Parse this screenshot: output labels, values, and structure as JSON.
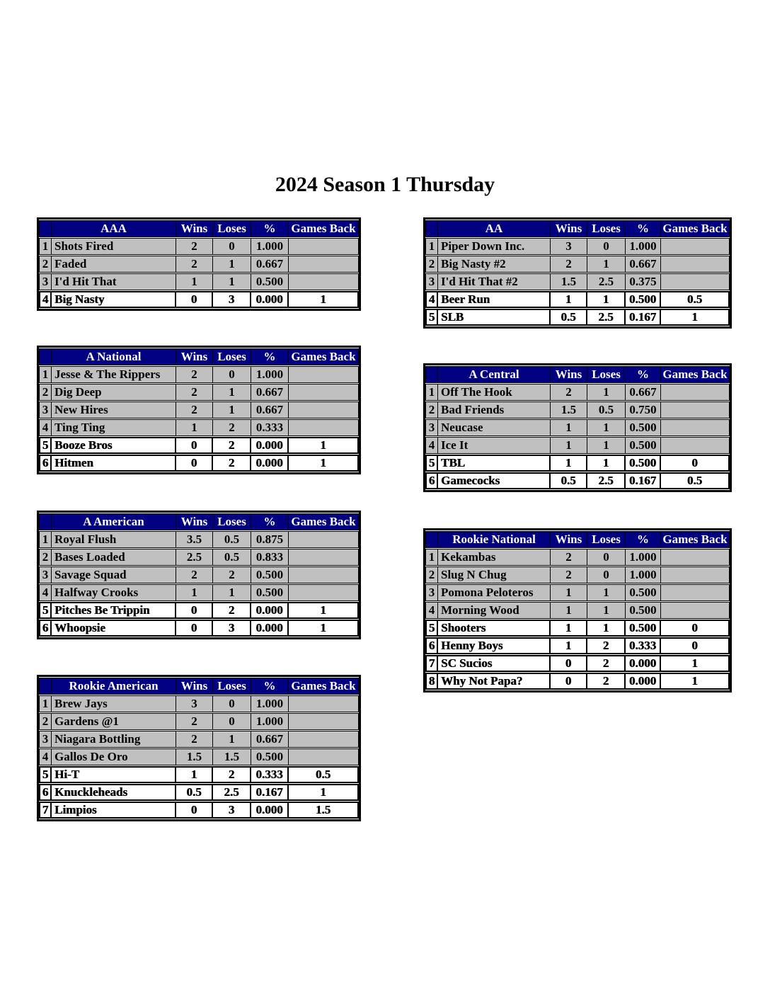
{
  "title": "2024 Season 1 Thursday",
  "column_headers": {
    "wins": "Wins",
    "loses": "Loses",
    "pct": "%",
    "games_back": "Games Back"
  },
  "colors": {
    "header_bg": "#000080",
    "header_text": "#FFFFFF",
    "above_line_row_bg": "#C0C0C0",
    "below_line_row_bg": "#FFFFFF",
    "grid": "#000000"
  },
  "tables": [
    {
      "division": "AAA",
      "column": "left",
      "rows": [
        {
          "rank": "1",
          "team": "Shots Fired",
          "wins": "2",
          "loses": "0",
          "pct": "1.000",
          "games_back": "",
          "below_line": false
        },
        {
          "rank": "2",
          "team": "Faded",
          "wins": "2",
          "loses": "1",
          "pct": "0.667",
          "games_back": "",
          "below_line": false
        },
        {
          "rank": "3",
          "team": "I'd Hit That",
          "wins": "1",
          "loses": "1",
          "pct": "0.500",
          "games_back": "",
          "below_line": false
        },
        {
          "rank": "4",
          "team": "Big Nasty",
          "wins": "0",
          "loses": "3",
          "pct": "0.000",
          "games_back": "1",
          "below_line": true
        }
      ]
    },
    {
      "division": "A National",
      "column": "left",
      "rows": [
        {
          "rank": "1",
          "team": "Jesse & The Rippers",
          "wins": "2",
          "loses": "0",
          "pct": "1.000",
          "games_back": "",
          "below_line": false
        },
        {
          "rank": "2",
          "team": "Dig Deep",
          "wins": "2",
          "loses": "1",
          "pct": "0.667",
          "games_back": "",
          "below_line": false
        },
        {
          "rank": "3",
          "team": "New Hires",
          "wins": "2",
          "loses": "1",
          "pct": "0.667",
          "games_back": "",
          "below_line": false
        },
        {
          "rank": "4",
          "team": "Ting Ting",
          "wins": "1",
          "loses": "2",
          "pct": "0.333",
          "games_back": "",
          "below_line": false
        },
        {
          "rank": "5",
          "team": "Booze Bros",
          "wins": "0",
          "loses": "2",
          "pct": "0.000",
          "games_back": "1",
          "below_line": true
        },
        {
          "rank": "6",
          "team": "Hitmen",
          "wins": "0",
          "loses": "2",
          "pct": "0.000",
          "games_back": "1",
          "below_line": true
        }
      ]
    },
    {
      "division": "A American",
      "column": "left",
      "rows": [
        {
          "rank": "1",
          "team": "Royal Flush",
          "wins": "3.5",
          "loses": "0.5",
          "pct": "0.875",
          "games_back": "",
          "below_line": false
        },
        {
          "rank": "2",
          "team": "Bases Loaded",
          "wins": "2.5",
          "loses": "0.5",
          "pct": "0.833",
          "games_back": "",
          "below_line": false
        },
        {
          "rank": "3",
          "team": "Savage Squad",
          "wins": "2",
          "loses": "2",
          "pct": "0.500",
          "games_back": "",
          "below_line": false
        },
        {
          "rank": "4",
          "team": "Halfway Crooks",
          "wins": "1",
          "loses": "1",
          "pct": "0.500",
          "games_back": "",
          "below_line": false
        },
        {
          "rank": "5",
          "team": "Pitches Be Trippin",
          "wins": "0",
          "loses": "2",
          "pct": "0.000",
          "games_back": "1",
          "below_line": true
        },
        {
          "rank": "6",
          "team": "Whoopsie",
          "wins": "0",
          "loses": "3",
          "pct": "0.000",
          "games_back": "1",
          "below_line": true
        }
      ]
    },
    {
      "division": "Rookie American",
      "column": "left",
      "rows": [
        {
          "rank": "1",
          "team": "Brew Jays",
          "wins": "3",
          "loses": "0",
          "pct": "1.000",
          "games_back": "",
          "below_line": false
        },
        {
          "rank": "2",
          "team": "Gardens @1",
          "wins": "2",
          "loses": "0",
          "pct": "1.000",
          "games_back": "",
          "below_line": false
        },
        {
          "rank": "3",
          "team": "Niagara Bottling",
          "wins": "2",
          "loses": "1",
          "pct": "0.667",
          "games_back": "",
          "below_line": false
        },
        {
          "rank": "4",
          "team": "Gallos De Oro",
          "wins": "1.5",
          "loses": "1.5",
          "pct": "0.500",
          "games_back": "",
          "below_line": false
        },
        {
          "rank": "5",
          "team": "Hi-T",
          "wins": "1",
          "loses": "2",
          "pct": "0.333",
          "games_back": "0.5",
          "below_line": true
        },
        {
          "rank": "6",
          "team": "Knuckleheads",
          "wins": "0.5",
          "loses": "2.5",
          "pct": "0.167",
          "games_back": "1",
          "below_line": true
        },
        {
          "rank": "7",
          "team": "Limpios",
          "wins": "0",
          "loses": "3",
          "pct": "0.000",
          "games_back": "1.5",
          "below_line": true
        }
      ]
    },
    {
      "division": "AA",
      "column": "right",
      "rows": [
        {
          "rank": "1",
          "team": "Piper Down Inc.",
          "wins": "3",
          "loses": "0",
          "pct": "1.000",
          "games_back": "",
          "below_line": false
        },
        {
          "rank": "2",
          "team": "Big Nasty #2",
          "wins": "2",
          "loses": "1",
          "pct": "0.667",
          "games_back": "",
          "below_line": false
        },
        {
          "rank": "3",
          "team": "I'd Hit That #2",
          "wins": "1.5",
          "loses": "2.5",
          "pct": "0.375",
          "games_back": "",
          "below_line": false
        },
        {
          "rank": "4",
          "team": "Beer Run",
          "wins": "1",
          "loses": "1",
          "pct": "0.500",
          "games_back": "0.5",
          "below_line": true
        },
        {
          "rank": "5",
          "team": "SLB",
          "wins": "0.5",
          "loses": "2.5",
          "pct": "0.167",
          "games_back": "1",
          "below_line": true
        }
      ]
    },
    {
      "division": "A Central",
      "column": "right",
      "rows": [
        {
          "rank": "1",
          "team": "Off The Hook",
          "wins": "2",
          "loses": "1",
          "pct": "0.667",
          "games_back": "",
          "below_line": false
        },
        {
          "rank": "2",
          "team": "Bad Friends",
          "wins": "1.5",
          "loses": "0.5",
          "pct": "0.750",
          "games_back": "",
          "below_line": false
        },
        {
          "rank": "3",
          "team": "Neucase",
          "wins": "1",
          "loses": "1",
          "pct": "0.500",
          "games_back": "",
          "below_line": false
        },
        {
          "rank": "4",
          "team": "Ice It",
          "wins": "1",
          "loses": "1",
          "pct": "0.500",
          "games_back": "",
          "below_line": false
        },
        {
          "rank": "5",
          "team": "TBL",
          "wins": "1",
          "loses": "1",
          "pct": "0.500",
          "games_back": "0",
          "below_line": true
        },
        {
          "rank": "6",
          "team": "Gamecocks",
          "wins": "0.5",
          "loses": "2.5",
          "pct": "0.167",
          "games_back": "0.5",
          "below_line": true
        }
      ]
    },
    {
      "division": "Rookie National",
      "column": "right",
      "rows": [
        {
          "rank": "1",
          "team": "Kekambas",
          "wins": "2",
          "loses": "0",
          "pct": "1.000",
          "games_back": "",
          "below_line": false
        },
        {
          "rank": "2",
          "team": "Slug N Chug",
          "wins": "2",
          "loses": "0",
          "pct": "1.000",
          "games_back": "",
          "below_line": false
        },
        {
          "rank": "3",
          "team": "Pomona Peloteros",
          "wins": "1",
          "loses": "1",
          "pct": "0.500",
          "games_back": "",
          "below_line": false
        },
        {
          "rank": "4",
          "team": "Morning Wood",
          "wins": "1",
          "loses": "1",
          "pct": "0.500",
          "games_back": "",
          "below_line": false
        },
        {
          "rank": "5",
          "team": "Shooters",
          "wins": "1",
          "loses": "1",
          "pct": "0.500",
          "games_back": "0",
          "below_line": true
        },
        {
          "rank": "6",
          "team": "Henny Boys",
          "wins": "1",
          "loses": "2",
          "pct": "0.333",
          "games_back": "0",
          "below_line": true
        },
        {
          "rank": "7",
          "team": "SC Sucios",
          "wins": "0",
          "loses": "2",
          "pct": "0.000",
          "games_back": "1",
          "below_line": true
        },
        {
          "rank": "8",
          "team": "Why Not Papa?",
          "wins": "0",
          "loses": "2",
          "pct": "0.000",
          "games_back": "1",
          "below_line": true
        }
      ]
    }
  ]
}
